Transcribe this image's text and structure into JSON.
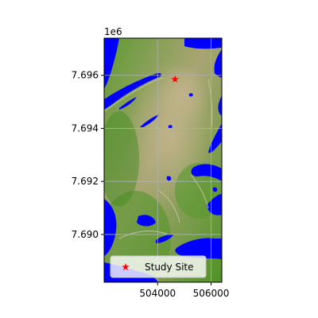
{
  "chart_data": {
    "type": "scatter",
    "title": "",
    "xlabel": "",
    "ylabel": "",
    "y_offset_label": "1e6",
    "xlim": [
      502000,
      506400
    ],
    "ylim": [
      7688200,
      7697400
    ],
    "x_ticks": [
      504000,
      506000
    ],
    "x_tick_labels": [
      "504000",
      "506000"
    ],
    "y_ticks": [
      7690000,
      7692000,
      7694000,
      7696000
    ],
    "y_tick_labels": [
      "7.690",
      "7.692",
      "7.694",
      "7.696"
    ],
    "grid": true,
    "legend_position": "lower-center",
    "series": [
      {
        "name": "Study Site",
        "marker": "star",
        "color": "#ff0000",
        "points": [
          {
            "x": 504650,
            "y": 7695850
          }
        ]
      }
    ]
  },
  "colors": {
    "water": "#0000ff",
    "land_base": "#7f9e4a",
    "land_light": "#b8ae82",
    "land_dark": "#3f8a1c"
  }
}
